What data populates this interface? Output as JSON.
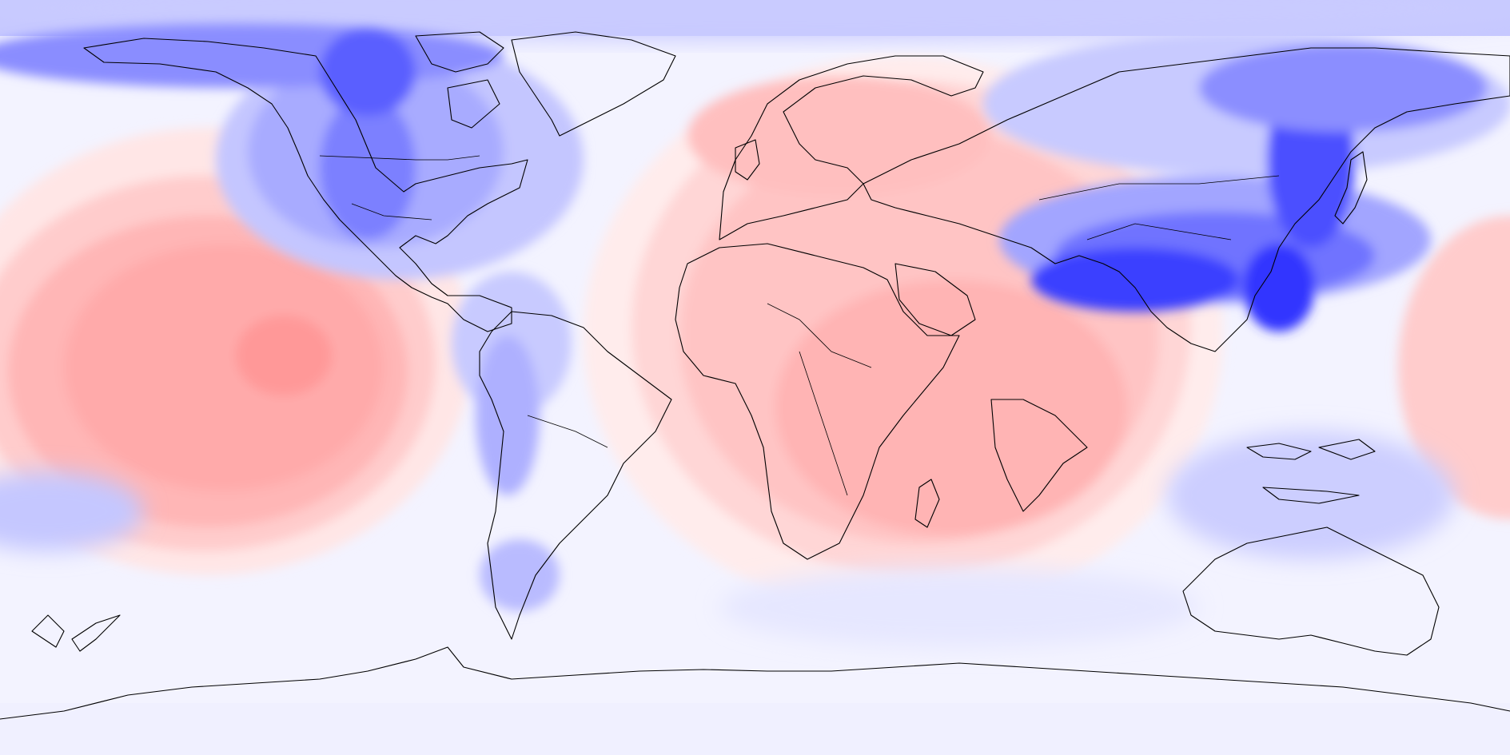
{
  "map": {
    "kind": "global-field-anomaly",
    "projection": "equirectangular",
    "longitude_range": [
      -180,
      180
    ],
    "latitude_range": [
      -90,
      90
    ],
    "colorscale": {
      "negative": "#0000ff",
      "neutral": "#f5f5ff",
      "positive": "#ff8080"
    },
    "features": {
      "coastlines": true,
      "country_borders": true,
      "colorbar": false,
      "title": ""
    }
  }
}
